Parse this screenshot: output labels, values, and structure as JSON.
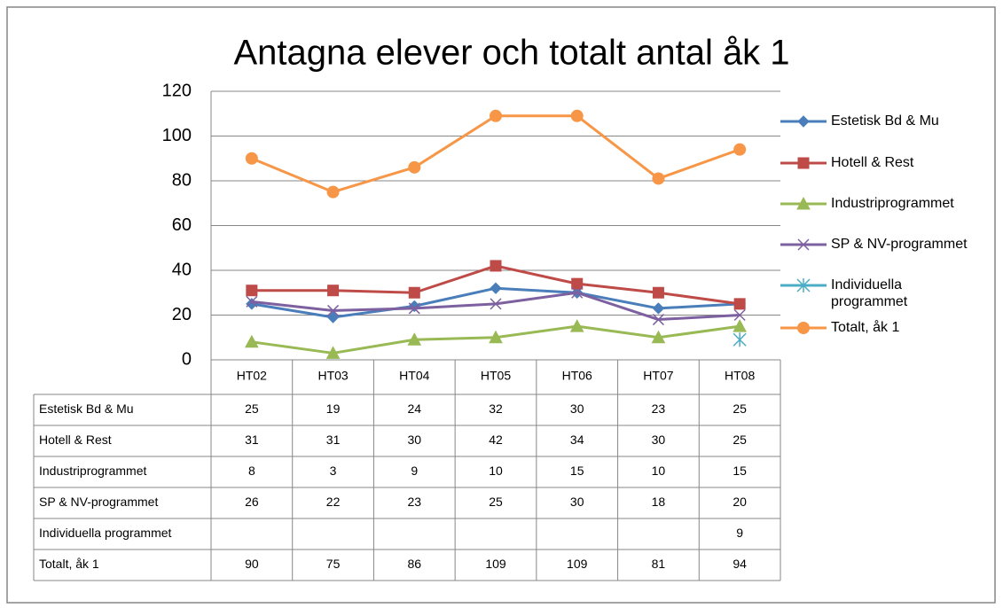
{
  "chart_data": {
    "type": "line",
    "title": "Antagna elever och totalt antal åk 1",
    "categories": [
      "HT02",
      "HT03",
      "HT04",
      "HT05",
      "HT06",
      "HT07",
      "HT08"
    ],
    "series": [
      {
        "name": "Estetisk Bd & Mu",
        "color": "#4a7ebb",
        "marker": "diamond",
        "values": [
          25,
          19,
          24,
          32,
          30,
          23,
          25
        ]
      },
      {
        "name": "Hotell & Rest",
        "color": "#be4b48",
        "marker": "square",
        "values": [
          31,
          31,
          30,
          42,
          34,
          30,
          25
        ]
      },
      {
        "name": "Industriprogrammet",
        "color": "#98b954",
        "marker": "triangle",
        "values": [
          8,
          3,
          9,
          10,
          15,
          10,
          15
        ]
      },
      {
        "name": "SP & NV-programmet",
        "color": "#7d60a0",
        "marker": "x",
        "values": [
          26,
          22,
          23,
          25,
          30,
          18,
          20
        ]
      },
      {
        "name": "Individuella programmet",
        "color": "#4bacc6",
        "marker": "star",
        "values": [
          null,
          null,
          null,
          null,
          null,
          null,
          9
        ]
      },
      {
        "name": "Totalt, åk 1",
        "color": "#f79646",
        "marker": "circle",
        "values": [
          90,
          75,
          86,
          109,
          109,
          81,
          94
        ]
      }
    ],
    "ylim": [
      0,
      120
    ],
    "yticks": [
      0,
      20,
      40,
      60,
      80,
      100,
      120
    ],
    "grid": true,
    "legend": "right",
    "data_table": true
  }
}
